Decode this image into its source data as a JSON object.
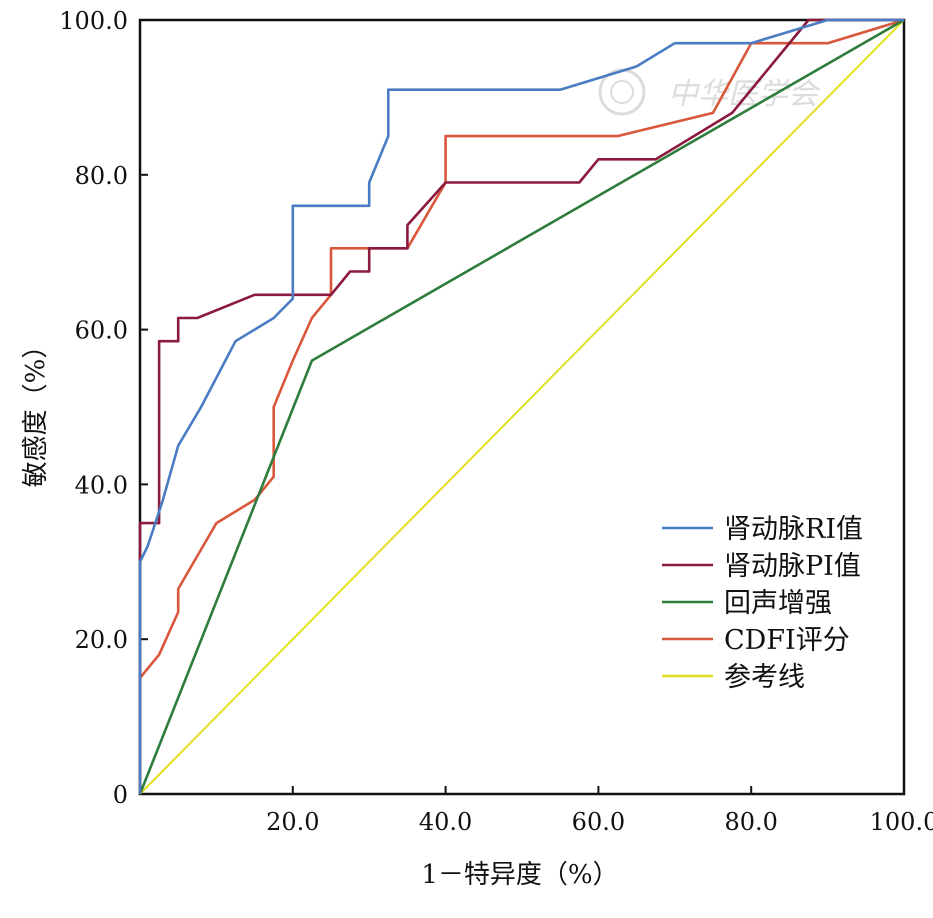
{
  "chart_data": {
    "type": "line",
    "xlabel": "1－特异度（%）",
    "ylabel": "敏感度（%）",
    "xlim": [
      0,
      100
    ],
    "ylim": [
      0,
      100
    ],
    "x_ticks": [
      "20.0",
      "40.0",
      "60.0",
      "80.0",
      "100.0"
    ],
    "y_ticks": [
      "0",
      "20.0",
      "40.0",
      "60.0",
      "80.0",
      "100.0"
    ],
    "grid": false,
    "legend_position": "right, lower-middle",
    "series": [
      {
        "name": "肾动脉RI值",
        "color": "#4a7cc4",
        "x": [
          0,
          0,
          1,
          2,
          3,
          5,
          8,
          12.5,
          17.5,
          20,
          20,
          30,
          30,
          32.5,
          32.5,
          55,
          65,
          70,
          80,
          90,
          100
        ],
        "y": [
          0,
          30,
          32,
          35,
          38,
          45,
          50,
          58.5,
          61.5,
          64,
          76,
          76,
          79,
          85,
          91,
          91,
          94,
          97,
          97,
          100,
          100
        ]
      },
      {
        "name": "肾动脉PI值",
        "color": "#8b1a3d",
        "x": [
          0,
          0,
          2.5,
          2.5,
          5,
          5,
          7.5,
          15,
          25,
          27.5,
          30,
          30,
          35,
          35,
          40,
          57.5,
          60,
          67.5,
          77.5,
          87.5,
          100
        ],
        "y": [
          0,
          35,
          35,
          58.5,
          58.5,
          61.5,
          61.5,
          64.5,
          64.5,
          67.5,
          67.5,
          70.5,
          70.5,
          73.5,
          79,
          79,
          82,
          82,
          88,
          100,
          100
        ]
      },
      {
        "name": "回声增强",
        "color": "#2e7d3c",
        "x": [
          0,
          22.5,
          100
        ],
        "y": [
          0,
          56,
          100
        ]
      },
      {
        "name": "CDFI评分",
        "color": "#d9573c",
        "x": [
          0,
          0,
          2.5,
          5,
          5,
          10,
          15,
          17.5,
          17.5,
          20,
          22.5,
          25,
          25,
          35,
          40,
          40,
          62.5,
          75,
          80,
          90,
          100
        ],
        "y": [
          0,
          15,
          18,
          23.5,
          26.5,
          35,
          38,
          41,
          50,
          56,
          61.5,
          64.5,
          70.5,
          70.5,
          79,
          85,
          85,
          88,
          97,
          97,
          100
        ]
      },
      {
        "name": "参考线",
        "color": "#e0e020",
        "x": [
          0,
          100
        ],
        "y": [
          0,
          100
        ]
      }
    ]
  },
  "watermark": "中华医学会"
}
